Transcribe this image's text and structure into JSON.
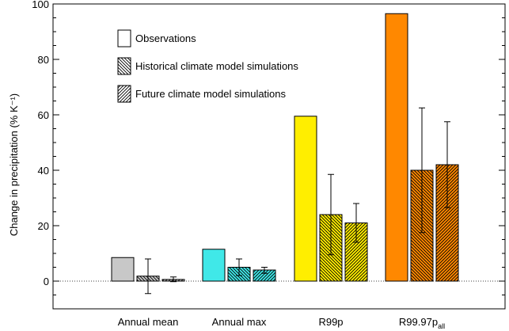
{
  "chart_data": {
    "type": "bar",
    "title": "",
    "xlabel": "",
    "ylabel": "Change in precipitation (% K⁻¹)",
    "ylim": [
      -10,
      100
    ],
    "yticks": [
      0,
      20,
      40,
      60,
      80,
      100
    ],
    "categories": [
      "Annual mean",
      "Annual max",
      "R99p",
      "R99.97p_all"
    ],
    "category_labels": [
      {
        "main": "Annual mean",
        "sub": ""
      },
      {
        "main": "Annual max",
        "sub": ""
      },
      {
        "main": "R99p",
        "sub": ""
      },
      {
        "main": "R99.97p",
        "sub": "all"
      }
    ],
    "category_colors": [
      "#c8c8c8",
      "#40e8e8",
      "#ffee00",
      "#ff8800"
    ],
    "zero_line": true,
    "series": [
      {
        "name": "Observations",
        "pattern": "solid",
        "values": [
          8.5,
          11.5,
          59.5,
          96.5
        ],
        "error_low": [
          null,
          null,
          null,
          null
        ],
        "error_high": [
          null,
          null,
          null,
          null
        ]
      },
      {
        "name": "Historical climate model simulations",
        "pattern": "hatch-back",
        "values": [
          1.8,
          5.0,
          24.0,
          40.0
        ],
        "error_low": [
          -4.5,
          2.0,
          9.5,
          17.5
        ],
        "error_high": [
          8.0,
          8.0,
          38.5,
          62.5
        ]
      },
      {
        "name": "Future climate model simulations",
        "pattern": "hatch-forward",
        "values": [
          0.6,
          4.0,
          21.0,
          42.0
        ],
        "error_low": [
          -0.2,
          2.8,
          14.0,
          26.5
        ],
        "error_high": [
          1.5,
          5.0,
          28.0,
          57.5
        ]
      }
    ],
    "legend": {
      "position": "top-left",
      "entries": [
        "Observations",
        "Historical climate model simulations",
        "Future climate model simulations"
      ]
    }
  }
}
